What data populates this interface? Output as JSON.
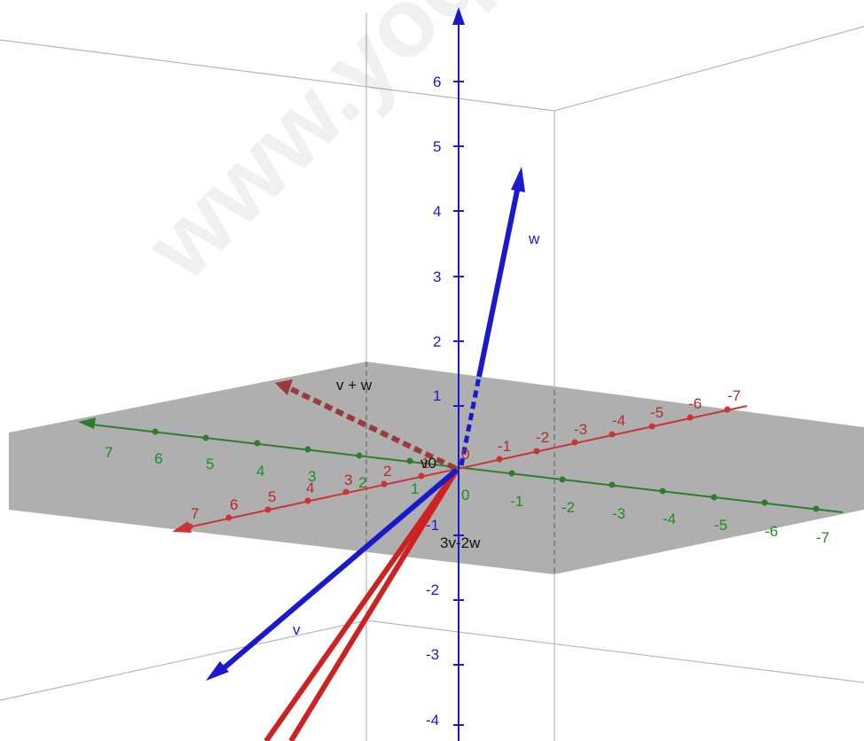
{
  "watermark": "www.yoquiero",
  "axes": {
    "z_ticks": [
      "6",
      "5",
      "4",
      "3",
      "2",
      "1",
      "-1",
      "-2",
      "-3",
      "-4"
    ],
    "x_ticks": [
      "7",
      "6",
      "5",
      "4",
      "3",
      "2",
      "1",
      "0",
      "-1",
      "-2",
      "-3",
      "-4",
      "-5",
      "-6",
      "-7"
    ],
    "y_ticks": [
      "7",
      "6",
      "5",
      "4",
      "3",
      "2",
      "1",
      "0",
      "-1",
      "-2",
      "-3",
      "-4",
      "-5",
      "-6",
      "-7"
    ],
    "origin_labels": [
      "0",
      "0"
    ]
  },
  "vectors": {
    "w": "w",
    "v": "v",
    "v_plus_w": "v + w",
    "three_v_minus_2w": "3v-2w",
    "v0": "v0"
  },
  "colors": {
    "x_axis": "#cc3333",
    "y_axis": "#2e7d2e",
    "z_axis": "#1a1acc",
    "plane": "#a8a8a8",
    "vector_red": "#cc2222",
    "vector_dashed": "#9a3a3a"
  }
}
